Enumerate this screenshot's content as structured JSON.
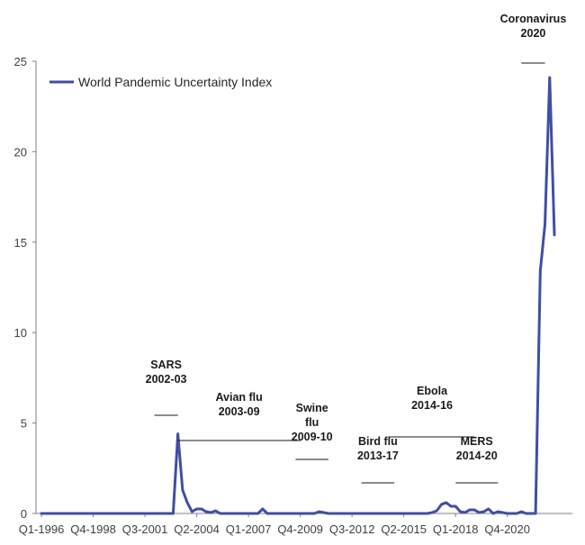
{
  "chart_data": {
    "type": "line",
    "title": "",
    "xlabel": "",
    "ylabel": "",
    "ylim": [
      0,
      25
    ],
    "yticks": [
      0,
      5,
      10,
      15,
      20,
      25
    ],
    "xtick_labels": [
      "Q1-1996",
      "Q4-1998",
      "Q3-2001",
      "Q2-2004",
      "Q1-2007",
      "Q4-2009",
      "Q3-2012",
      "Q2-2015",
      "Q1-2018",
      "Q4-2020"
    ],
    "series": [
      {
        "name": "World Pandemic Uncertainty Index",
        "color": "#3f4fa3",
        "values": [
          0,
          0,
          0,
          0,
          0,
          0,
          0,
          0,
          0,
          0,
          0,
          0,
          0,
          0,
          0,
          0,
          0,
          0,
          0,
          0,
          0,
          0,
          0,
          0,
          0,
          0,
          0,
          0,
          0,
          4.4,
          1.3,
          0.6,
          0.1,
          0.25,
          0.25,
          0.1,
          0.05,
          0.15,
          0,
          0,
          0,
          0,
          0,
          0,
          0,
          0,
          0,
          0.25,
          0,
          0,
          0,
          0,
          0,
          0,
          0,
          0,
          0,
          0,
          0,
          0.1,
          0.05,
          0,
          0,
          0,
          0,
          0,
          0,
          0,
          0,
          0,
          0,
          0,
          0,
          0,
          0,
          0,
          0,
          0,
          0,
          0,
          0,
          0,
          0,
          0.05,
          0.15,
          0.5,
          0.6,
          0.4,
          0.4,
          0.1,
          0.05,
          0.2,
          0.2,
          0.05,
          0.1,
          0.25,
          0,
          0.1,
          0.05,
          0,
          0,
          0,
          0.1,
          0,
          0,
          0,
          13.4,
          16,
          24.1,
          15.4
        ]
      }
    ],
    "annotations": [
      {
        "line1": "SARS",
        "line2": "2002-03",
        "start_index": 24,
        "end_index": 29
      },
      {
        "line1": "Avian flu",
        "line2": "2003-09",
        "start_index": 29,
        "end_index": 55
      },
      {
        "line1": "Swine",
        "line2": "flu",
        "line3": "2009-10",
        "start_index": 54,
        "end_index": 61
      },
      {
        "line1": "Bird flu",
        "line2": "2013-17",
        "start_index": 68,
        "end_index": 75
      },
      {
        "line1": "Ebola",
        "line2": "2014-16",
        "start_index": 74,
        "end_index": 92
      },
      {
        "line1": "MERS",
        "line2": "2014-20",
        "start_index": 88,
        "end_index": 97
      },
      {
        "line1": "Coronavirus",
        "line2": "2020",
        "start_index": 102,
        "end_index": 107
      }
    ]
  }
}
